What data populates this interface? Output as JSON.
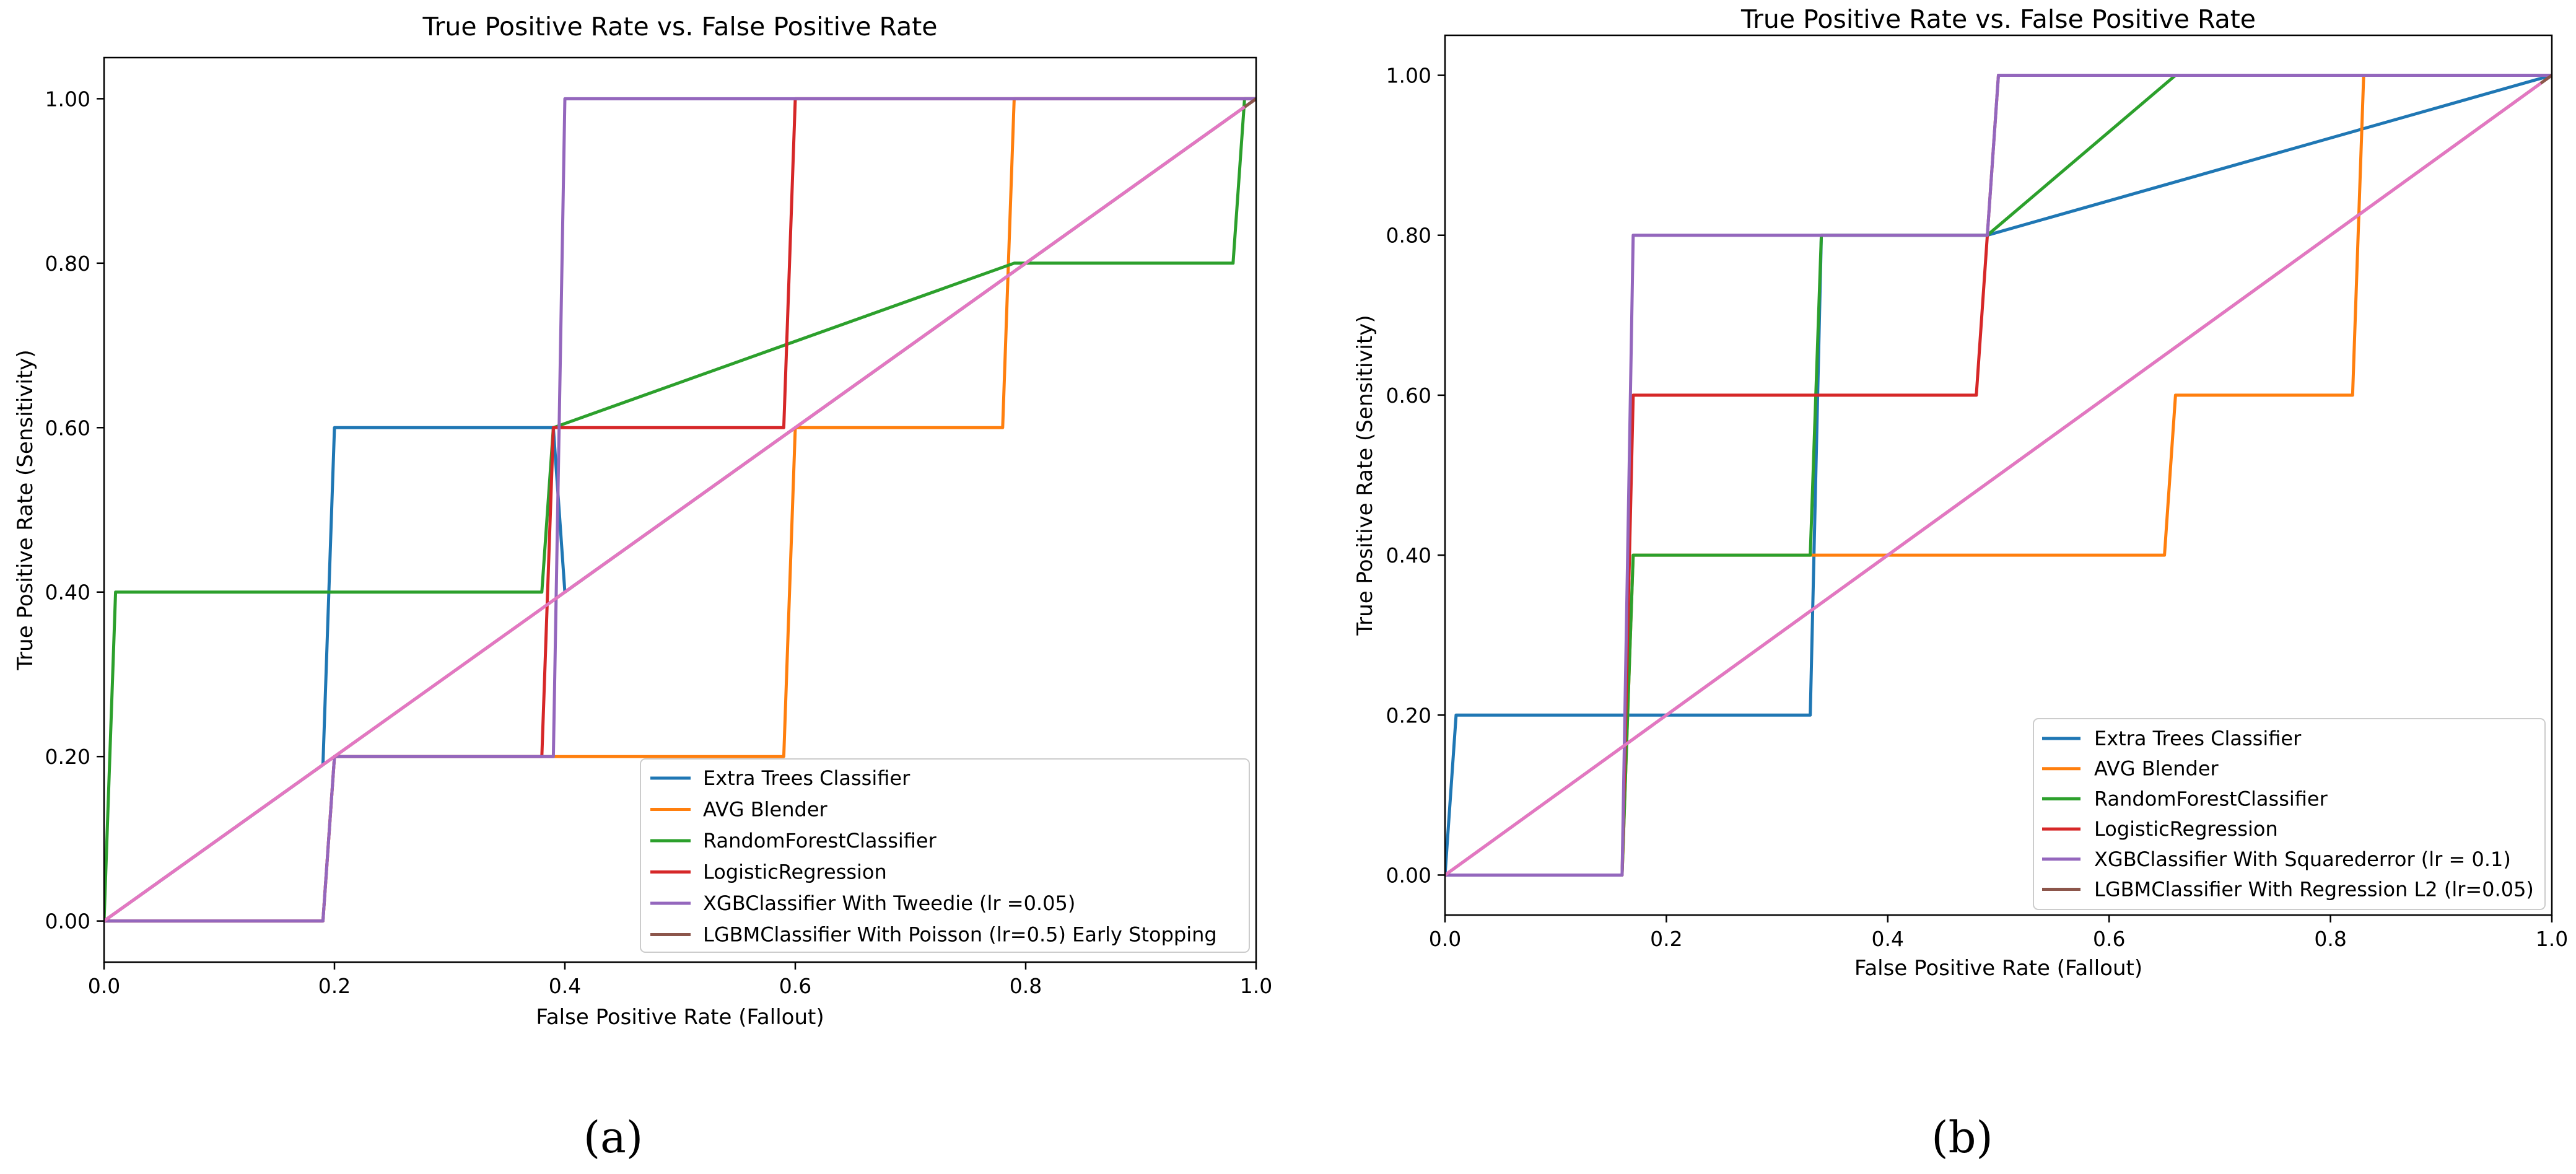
{
  "chart_data": [
    {
      "type": "line",
      "title": "True Positive Rate vs. False Positive Rate",
      "xlabel": "False Positive Rate (Fallout)",
      "ylabel": "True Positive Rate (Sensitivity)",
      "xlim": [
        0.0,
        1.0
      ],
      "ylim": [
        -0.05,
        1.05
      ],
      "xticks": [
        "0.0",
        "0.2",
        "0.4",
        "0.6",
        "0.8",
        "1.0"
      ],
      "yticks": [
        "0.00",
        "0.20",
        "0.40",
        "0.60",
        "0.80",
        "1.00"
      ],
      "legend_position": "lower-right",
      "caption": "(a)",
      "series": [
        {
          "name": "Extra Trees Classifier",
          "color": "#1f77b4",
          "x": [
            0,
            0.19,
            0.2,
            0.39,
            0.4,
            0.59,
            0.6,
            0.79,
            0.8,
            0.99,
            1.0
          ],
          "y": [
            0,
            0.19,
            0.6,
            0.6,
            0.4,
            0.59,
            0.6,
            0.79,
            0.8,
            0.99,
            1.0
          ]
        },
        {
          "name": "AVG Blender",
          "color": "#ff7f0e",
          "x": [
            0,
            0.19,
            0.2,
            0.59,
            0.6,
            0.78,
            0.79,
            0.99,
            1.0
          ],
          "y": [
            0,
            0,
            0.2,
            0.2,
            0.6,
            0.6,
            1.0,
            1.0,
            1.0
          ]
        },
        {
          "name": "RandomForestClassifier",
          "color": "#2ca02c",
          "x": [
            0,
            0.01,
            0.38,
            0.39,
            0.79,
            0.8,
            0.98,
            0.99,
            1.0
          ],
          "y": [
            0,
            0.4,
            0.4,
            0.6,
            0.8,
            0.8,
            0.8,
            1.0,
            1.0
          ]
        },
        {
          "name": "LogisticRegression",
          "color": "#d62728",
          "x": [
            0,
            0.19,
            0.2,
            0.38,
            0.39,
            0.59,
            0.6,
            0.99,
            1.0
          ],
          "y": [
            0,
            0,
            0.2,
            0.2,
            0.6,
            0.6,
            1.0,
            1.0,
            1.0
          ]
        },
        {
          "name": "XGBClassifier With Tweedie (lr =0.05)",
          "color": "#9467bd",
          "x": [
            0,
            0.19,
            0.2,
            0.39,
            0.4,
            0.99,
            1.0
          ],
          "y": [
            0,
            0,
            0.2,
            0.2,
            1.0,
            1.0,
            1.0
          ]
        },
        {
          "name": "LGBMClassifier With Poisson (lr=0.5) Early Stopping",
          "color": "#8c564b",
          "x": [
            0,
            1.0
          ],
          "y": [
            0,
            1.0
          ]
        },
        {
          "name": "",
          "color": "#e377c2",
          "x": [
            0,
            0.99
          ],
          "y": [
            0,
            0.99
          ]
        }
      ]
    },
    {
      "type": "line",
      "title": "True Positive Rate vs. False Positive Rate",
      "xlabel": "False Positive Rate (Fallout)",
      "ylabel": "True Positive Rate (Sensitivity)",
      "xlim": [
        0.0,
        1.0
      ],
      "ylim": [
        -0.05,
        1.05
      ],
      "xticks": [
        "0.0",
        "0.2",
        "0.4",
        "0.6",
        "0.8",
        "1.0"
      ],
      "yticks": [
        "0.00",
        "0.20",
        "0.40",
        "0.60",
        "0.80",
        "1.00"
      ],
      "legend_position": "lower-right",
      "caption": "(b)",
      "series": [
        {
          "name": "Extra Trees Classifier",
          "color": "#1f77b4",
          "x": [
            0,
            0.01,
            0.33,
            0.34,
            0.49,
            1.0
          ],
          "y": [
            0,
            0.2,
            0.2,
            0.8,
            0.8,
            1.0
          ]
        },
        {
          "name": "AVG Blender",
          "color": "#ff7f0e",
          "x": [
            0,
            0.16,
            0.17,
            0.65,
            0.66,
            0.82,
            0.83,
            1.0
          ],
          "y": [
            0,
            0,
            0.4,
            0.4,
            0.6,
            0.6,
            1.0,
            1.0
          ]
        },
        {
          "name": "RandomForestClassifier",
          "color": "#2ca02c",
          "x": [
            0,
            0.16,
            0.17,
            0.33,
            0.34,
            0.49,
            0.66,
            1.0
          ],
          "y": [
            0,
            0,
            0.4,
            0.4,
            0.8,
            0.8,
            1.0,
            1.0
          ]
        },
        {
          "name": "LogisticRegression",
          "color": "#d62728",
          "x": [
            0,
            0.16,
            0.17,
            0.48,
            0.49,
            0.5,
            1.0
          ],
          "y": [
            0,
            0,
            0.6,
            0.6,
            0.8,
            1.0,
            1.0
          ]
        },
        {
          "name": "XGBClassifier With Squarederror (lr = 0.1)",
          "color": "#9467bd",
          "x": [
            0,
            0.16,
            0.17,
            0.49,
            0.5,
            1.0
          ],
          "y": [
            0,
            0,
            0.8,
            0.8,
            1.0,
            1.0
          ]
        },
        {
          "name": "LGBMClassifier With Regression L2 (lr=0.05)",
          "color": "#8c564b",
          "x": [
            0,
            1.0
          ],
          "y": [
            0,
            1.0
          ]
        },
        {
          "name": "",
          "color": "#e377c2",
          "x": [
            0,
            0.99
          ],
          "y": [
            0,
            0.99
          ]
        }
      ]
    }
  ]
}
